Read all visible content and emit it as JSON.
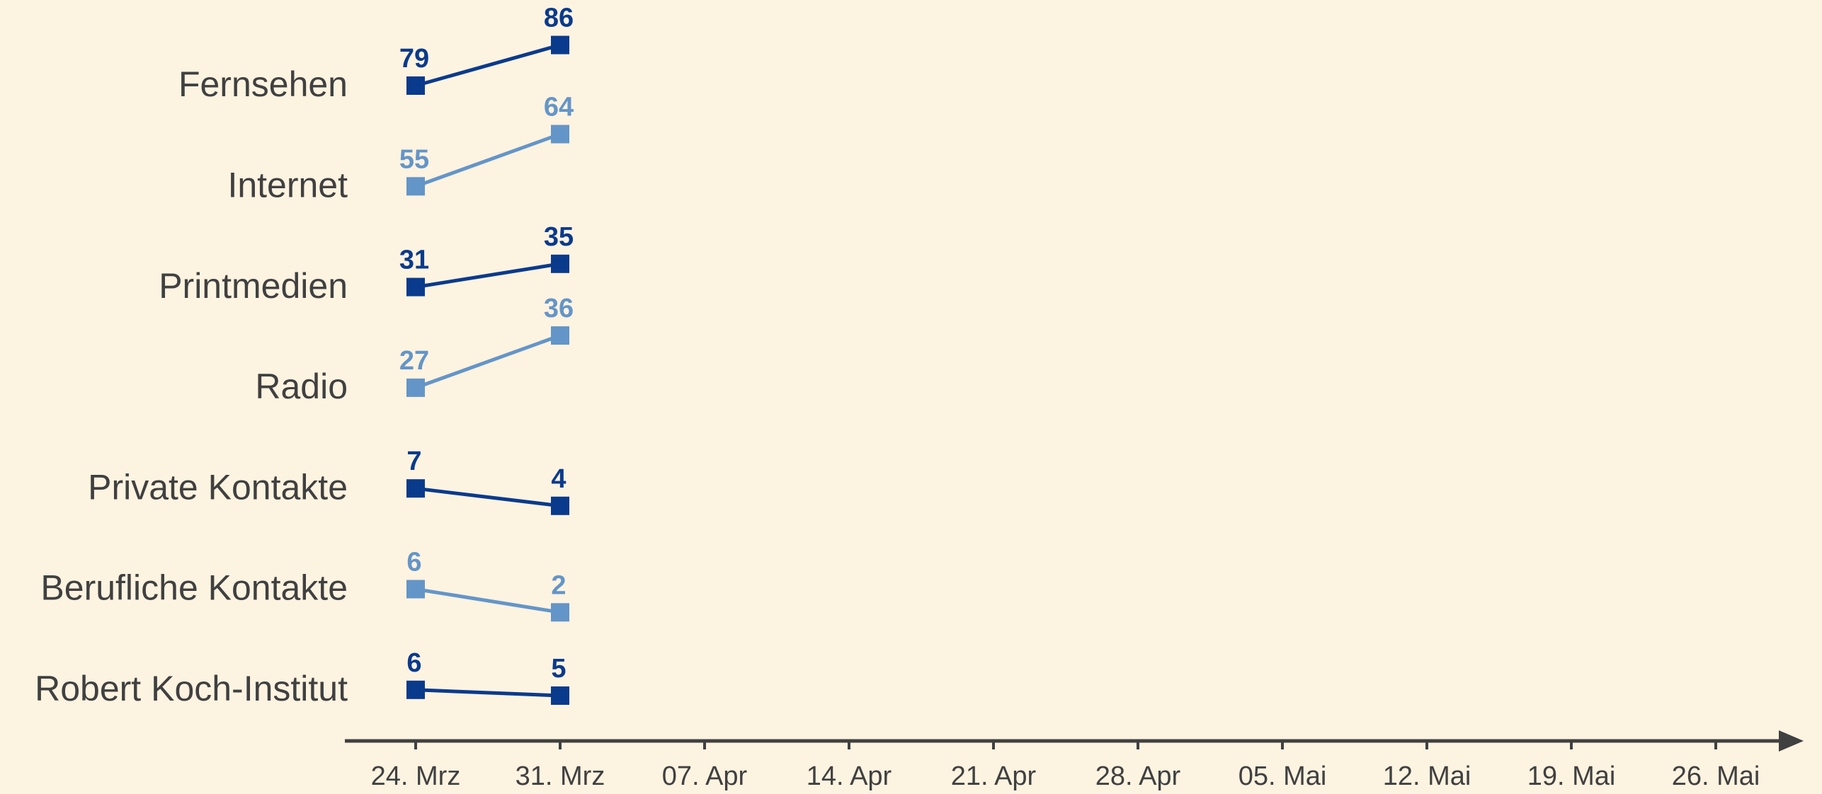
{
  "chart_data": {
    "type": "line",
    "categories": [
      "24. Mrz",
      "31. Mrz",
      "07. Apr",
      "14. Apr",
      "21. Apr",
      "28. Apr",
      "05. Mai",
      "12. Mai",
      "19. Mai",
      "26. Mai"
    ],
    "series": [
      {
        "name": "Fernsehen",
        "color": "#0a3a8c",
        "values": [
          79,
          86,
          null,
          null,
          null,
          null,
          null,
          null,
          null,
          null
        ]
      },
      {
        "name": "Internet",
        "color": "#6495c8",
        "values": [
          55,
          64,
          null,
          null,
          null,
          null,
          null,
          null,
          null,
          null
        ]
      },
      {
        "name": "Printmedien",
        "color": "#0a3a8c",
        "values": [
          31,
          35,
          null,
          null,
          null,
          null,
          null,
          null,
          null,
          null
        ]
      },
      {
        "name": "Radio",
        "color": "#6495c8",
        "values": [
          27,
          36,
          null,
          null,
          null,
          null,
          null,
          null,
          null,
          null
        ]
      },
      {
        "name": "Private Kontakte",
        "color": "#0a3a8c",
        "values": [
          7,
          4,
          null,
          null,
          null,
          null,
          null,
          null,
          null,
          null
        ]
      },
      {
        "name": "Berufliche Kontakte",
        "color": "#6495c8",
        "values": [
          6,
          2,
          null,
          null,
          null,
          null,
          null,
          null,
          null,
          null
        ]
      },
      {
        "name": "Robert Koch-Institut",
        "color": "#0a3a8c",
        "values": [
          6,
          5,
          null,
          null,
          null,
          null,
          null,
          null,
          null,
          null
        ]
      }
    ]
  }
}
